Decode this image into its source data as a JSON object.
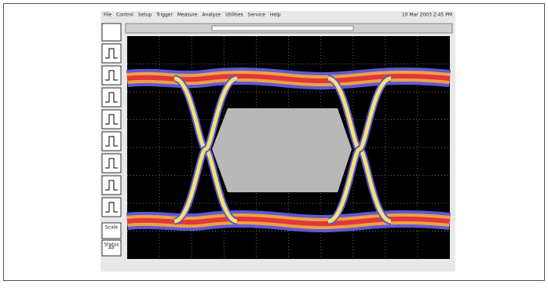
{
  "menu": [
    "File",
    "Control",
    "Setup",
    "Trigger",
    "Measure",
    "Analyze",
    "Utilities",
    "Service",
    "Help"
  ],
  "datetime": "10 Mar 2003 2:45 PM",
  "side_buttons": [
    "Scale",
    "Status"
  ],
  "status_value": "All"
}
